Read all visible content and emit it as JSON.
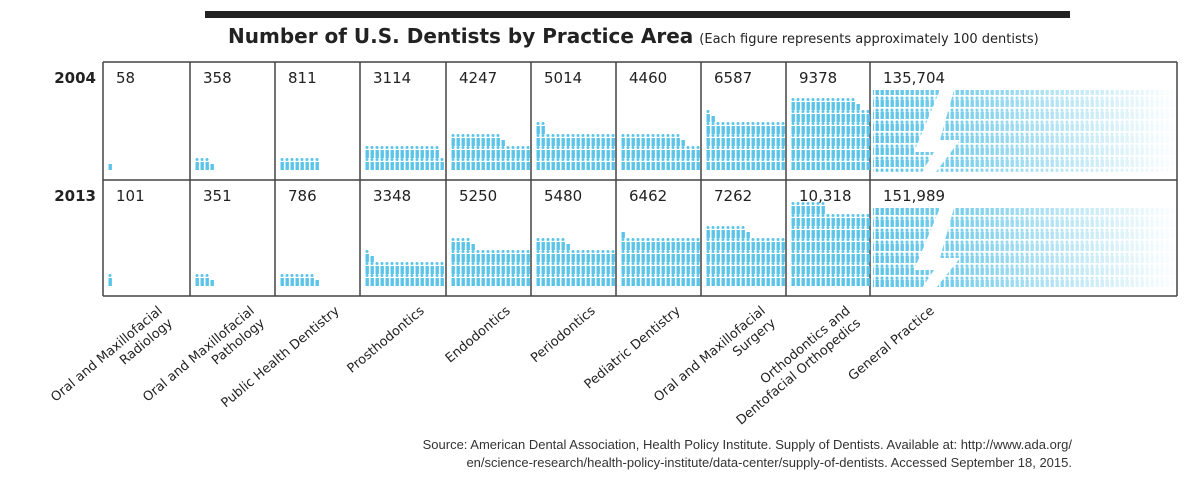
{
  "chart_data": {
    "type": "pictograph",
    "title": "Number of U.S. Dentists by Practice Area",
    "subtitle": "(Each figure represents approximately 100 dentists)",
    "unit_per_icon": 100,
    "series": [
      {
        "name": "2004",
        "labels": [
          "58",
          "358",
          "811",
          "3114",
          "4247",
          "5014",
          "4460",
          "6587",
          "9378",
          "135,704"
        ],
        "values": [
          58,
          358,
          811,
          3114,
          4247,
          5014,
          4460,
          6587,
          9378,
          135704
        ]
      },
      {
        "name": "2013",
        "labels": [
          "101",
          "351",
          "786",
          "3348",
          "5250",
          "5480",
          "6462",
          "7262",
          "10,318",
          "151,989"
        ],
        "values": [
          101,
          351,
          786,
          3348,
          5250,
          5480,
          6462,
          7262,
          10318,
          151989
        ]
      }
    ],
    "categories": [
      [
        "Oral and Maxillofacial",
        "Radiology"
      ],
      [
        "Oral and Maxillofacial",
        "Pathology"
      ],
      [
        "Public Health Dentistry"
      ],
      [
        "Prosthodontics"
      ],
      [
        "Endodontics"
      ],
      [
        "Periodontics"
      ],
      [
        "Pediatric Dentistry"
      ],
      [
        "Oral and Maxillofacial",
        "Surgery"
      ],
      [
        "Orthodontics and",
        "Dentofacial Orthopedics"
      ],
      [
        "General Practice"
      ]
    ],
    "icon_color": "#5bc4e8"
  },
  "source": [
    "Source: American Dental Association, Health Policy Institute. Supply of Dentists. Available at: http://www.ada.org/",
    "en/science-research/health-policy-institute/data-center/supply-of-dentists. Accessed September 18, 2015."
  ]
}
